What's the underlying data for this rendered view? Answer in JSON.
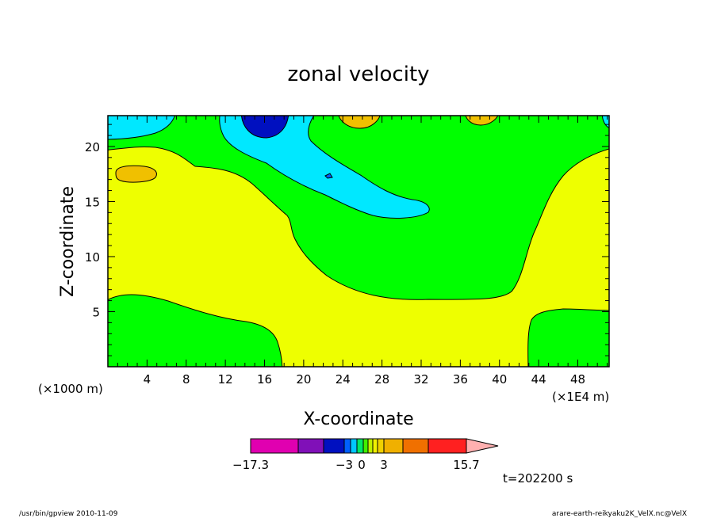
{
  "chart_data": {
    "type": "contour",
    "title": "zonal velocity",
    "xlabel": "X-coordinate",
    "ylabel": "Z-coordinate",
    "x_unit_left": "(×1000 m)",
    "x_unit_right": "(×1E4 m)",
    "xlim": [
      0,
      51.2
    ],
    "ylim": [
      0,
      22.8
    ],
    "x_ticks": [
      "4",
      "8",
      "12",
      "16",
      "20",
      "24",
      "28",
      "32",
      "36",
      "40",
      "44",
      "48"
    ],
    "y_ticks": [
      "5",
      "10",
      "15",
      "20"
    ],
    "colorbar": {
      "labels": [
        "−17.3",
        "−3",
        "0",
        "3",
        "15.7"
      ],
      "colors": [
        "#e000b0",
        "#8010b8",
        "#0010c0",
        "#0060ff",
        "#00c8ff",
        "#00e868",
        "#40f000",
        "#c0f000",
        "#f0f000",
        "#f0d000",
        "#f0b000",
        "#f07000",
        "#ff2020",
        "#ff7070",
        "#ffb0b0"
      ]
    },
    "fill_colors": {
      "dark_blue": "#0010c0",
      "cyan": "#00e8ff",
      "green": "#00ff00",
      "yellow": "#eeff00",
      "orange": "#f0c000",
      "blue": "#0060ff"
    },
    "time_label": "t=202200 s"
  },
  "footer": {
    "left": "/usr/bin/gpview   2010-11-09",
    "right": "arare-earth-reikyaku2K_VelX.nc@VelX"
  }
}
